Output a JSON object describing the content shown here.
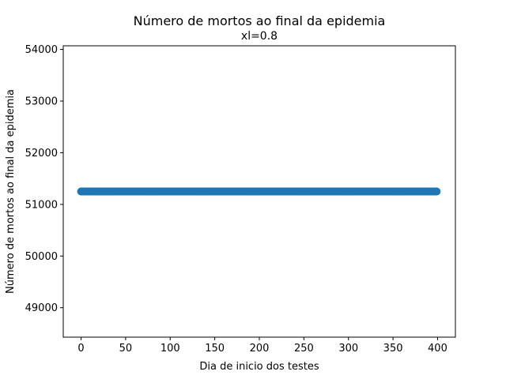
{
  "chart_data": {
    "type": "scatter",
    "title": "Número de mortos ao final da epidemia",
    "subtitle": "xl=0.8",
    "xlabel": "Dia de inicio dos testes",
    "ylabel": "Número de mortos ao final da epidemia",
    "xlim": [
      -20,
      420
    ],
    "ylim": [
      48430,
      54070
    ],
    "xticks": [
      0,
      50,
      100,
      150,
      200,
      250,
      300,
      350,
      400
    ],
    "yticks": [
      49000,
      50000,
      51000,
      52000,
      53000,
      54000
    ],
    "grid": false,
    "marker_color": "#1f77b4",
    "series": [
      {
        "x_start": 0,
        "x_end": 399,
        "x_step": 1,
        "y_constant": 51250
      }
    ]
  }
}
